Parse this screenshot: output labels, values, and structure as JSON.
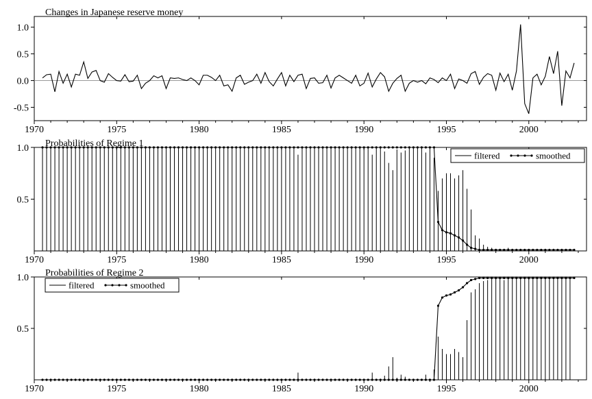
{
  "chart_data": [
    {
      "type": "line",
      "title": "Changes in Japanese reserve money",
      "x_start": 1970.5,
      "x_step": 0.25,
      "xlim": [
        1970,
        2003.5
      ],
      "ylim": [
        -0.75,
        1.2
      ],
      "xticks": [
        1970,
        1975,
        1980,
        1985,
        1990,
        1995,
        2000
      ],
      "yticks": [
        -0.5,
        0.0,
        0.5,
        1.0
      ],
      "ytick_labels": [
        "-0.5",
        "0.0",
        "0.5",
        "1.0"
      ],
      "reference_line": 0,
      "series": [
        {
          "values": [
            0.05,
            0.11,
            0.12,
            -0.21,
            0.17,
            -0.05,
            0.12,
            -0.12,
            0.12,
            0.1,
            0.35,
            0.04,
            0.16,
            0.19,
            0.0,
            -0.03,
            0.13,
            0.06,
            0.0,
            -0.01,
            0.11,
            -0.02,
            -0.01,
            0.1,
            -0.15,
            -0.05,
            0.0,
            0.09,
            0.05,
            0.09,
            -0.15,
            0.05,
            0.04,
            0.05,
            0.02,
            0.0,
            0.05,
            0.0,
            -0.08,
            0.1,
            0.1,
            0.06,
            0.0,
            0.1,
            -0.1,
            -0.08,
            -0.2,
            0.05,
            0.1,
            -0.07,
            -0.03,
            0.0,
            0.12,
            -0.05,
            0.15,
            -0.02,
            -0.1,
            0.03,
            0.15,
            -0.1,
            0.1,
            -0.02,
            0.1,
            0.12,
            -0.15,
            0.04,
            0.05,
            -0.05,
            -0.04,
            0.1,
            -0.14,
            0.05,
            0.1,
            0.05,
            0.0,
            -0.05,
            0.1,
            -0.1,
            -0.05,
            0.14,
            -0.12,
            0.03,
            0.15,
            0.07,
            -0.2,
            -0.05,
            0.04,
            0.1,
            -0.2,
            -0.05,
            0.0,
            -0.03,
            0.0,
            -0.06,
            0.05,
            0.02,
            -0.04,
            0.05,
            0.0,
            0.12,
            -0.15,
            0.03,
            0.0,
            -0.05,
            0.13,
            0.17,
            -0.07,
            0.06,
            0.13,
            0.1,
            -0.18,
            0.14,
            -0.02,
            0.12,
            -0.18,
            0.18,
            1.05,
            -0.43,
            -0.62,
            0.05,
            0.12,
            -0.08,
            0.08,
            0.45,
            0.13,
            0.55,
            -0.47,
            0.18,
            0.05,
            0.33
          ]
        }
      ]
    },
    {
      "type": "line",
      "title": "Probabilities of Regime 1",
      "x_start": 1970.5,
      "x_step": 0.25,
      "xlim": [
        1970,
        2003.5
      ],
      "ylim": [
        0,
        1
      ],
      "xticks": [
        1970,
        1975,
        1980,
        1985,
        1990,
        1995,
        2000
      ],
      "yticks": [
        0.5,
        1.0
      ],
      "ytick_labels": [
        "0.5",
        "1.0"
      ],
      "legend": {
        "position": "top-right",
        "entries": [
          "filtered",
          "smoothed"
        ]
      },
      "series": [
        {
          "name": "filtered",
          "style": "needle",
          "values": [
            1,
            1,
            1,
            1,
            1,
            1,
            1,
            1,
            1,
            1,
            1,
            1,
            1,
            1,
            1,
            1,
            1,
            1,
            1,
            1,
            1,
            1,
            1,
            1,
            1,
            1,
            1,
            1,
            1,
            1,
            1,
            1,
            1,
            1,
            1,
            1,
            1,
            1,
            1,
            1,
            1,
            1,
            1,
            1,
            1,
            1,
            1,
            1,
            1,
            1,
            1,
            1,
            1,
            1,
            1,
            1,
            1,
            1,
            1,
            1,
            1,
            1,
            0.93,
            1,
            1,
            1,
            1,
            1,
            1,
            1,
            1,
            1,
            1,
            1,
            1,
            1,
            1,
            1,
            1,
            1,
            0.93,
            1,
            1,
            0.96,
            0.85,
            0.78,
            0.98,
            0.95,
            0.97,
            1,
            1,
            1,
            1,
            0.95,
            0.99,
            0.9,
            0.58,
            0.7,
            0.75,
            0.75,
            0.7,
            0.73,
            0.78,
            0.6,
            0.4,
            0.15,
            0.12,
            0.06,
            0.04,
            0.03,
            0.02,
            0.02,
            0.02,
            0.03,
            0.02,
            0.02,
            0.01,
            0.01,
            0.01,
            0.01,
            0.01,
            0.01,
            0.01,
            0.01,
            0.01,
            0.01,
            0.01,
            0.01,
            0.01,
            0.01
          ]
        },
        {
          "name": "smoothed",
          "style": "line-dots",
          "values": [
            1,
            1,
            1,
            1,
            1,
            1,
            1,
            1,
            1,
            1,
            1,
            1,
            1,
            1,
            1,
            1,
            1,
            1,
            1,
            1,
            1,
            1,
            1,
            1,
            1,
            1,
            1,
            1,
            1,
            1,
            1,
            1,
            1,
            1,
            1,
            1,
            1,
            1,
            1,
            1,
            1,
            1,
            1,
            1,
            1,
            1,
            1,
            1,
            1,
            1,
            1,
            1,
            1,
            1,
            1,
            1,
            1,
            1,
            1,
            1,
            1,
            1,
            1,
            1,
            1,
            1,
            1,
            1,
            1,
            1,
            1,
            1,
            1,
            1,
            1,
            1,
            1,
            1,
            1,
            1,
            1,
            1,
            1,
            1,
            1,
            1,
            1,
            1,
            1,
            1,
            1,
            1,
            1,
            1,
            1,
            1,
            0.28,
            0.2,
            0.18,
            0.17,
            0.15,
            0.13,
            0.1,
            0.06,
            0.03,
            0.02,
            0.01,
            0.01,
            0.01,
            0.01,
            0.01,
            0.01,
            0.01,
            0.01,
            0.01,
            0.01,
            0.01,
            0.01,
            0.01,
            0.01,
            0.01,
            0.01,
            0.01,
            0.01,
            0.01,
            0.01,
            0.01,
            0.01,
            0.01,
            0.01
          ]
        }
      ]
    },
    {
      "type": "line",
      "title": "Probabilities of Regime 2",
      "x_start": 1970.5,
      "x_step": 0.25,
      "xlim": [
        1970,
        2003.5
      ],
      "ylim": [
        0,
        1
      ],
      "xticks": [
        1970,
        1975,
        1980,
        1985,
        1990,
        1995,
        2000
      ],
      "yticks": [
        0.5,
        1.0
      ],
      "ytick_labels": [
        "0.5",
        "1.0"
      ],
      "legend": {
        "position": "top-left",
        "entries": [
          "filtered",
          "smoothed"
        ]
      },
      "series": [
        {
          "name": "filtered",
          "style": "needle",
          "values": [
            0,
            0,
            0,
            0,
            0,
            0,
            0,
            0,
            0,
            0,
            0,
            0,
            0,
            0,
            0,
            0,
            0,
            0,
            0,
            0,
            0,
            0,
            0,
            0,
            0,
            0,
            0,
            0,
            0,
            0,
            0,
            0,
            0,
            0,
            0,
            0,
            0,
            0,
            0,
            0,
            0,
            0,
            0,
            0,
            0,
            0,
            0,
            0,
            0,
            0,
            0,
            0,
            0,
            0,
            0,
            0,
            0,
            0,
            0,
            0,
            0,
            0,
            0.07,
            0,
            0,
            0,
            0,
            0,
            0,
            0,
            0,
            0,
            0,
            0,
            0,
            0,
            0,
            0,
            0,
            0,
            0.07,
            0,
            0,
            0.04,
            0.13,
            0.22,
            0.02,
            0.05,
            0.03,
            0,
            0,
            0,
            0,
            0.05,
            0.01,
            0.1,
            0.42,
            0.3,
            0.25,
            0.25,
            0.3,
            0.27,
            0.22,
            0.58,
            0.85,
            0.88,
            0.94,
            0.96,
            0.97,
            0.98,
            0.98,
            0.98,
            0.97,
            0.98,
            0.98,
            0.99,
            0.99,
            0.99,
            0.99,
            0.99,
            0.99,
            0.99,
            0.99,
            0.99,
            0.99,
            0.99,
            0.99,
            0.99,
            0.99
          ]
        },
        {
          "name": "smoothed",
          "style": "line-dots",
          "values": [
            0,
            0,
            0,
            0,
            0,
            0,
            0,
            0,
            0,
            0,
            0,
            0,
            0,
            0,
            0,
            0,
            0,
            0,
            0,
            0,
            0,
            0,
            0,
            0,
            0,
            0,
            0,
            0,
            0,
            0,
            0,
            0,
            0,
            0,
            0,
            0,
            0,
            0,
            0,
            0,
            0,
            0,
            0,
            0,
            0,
            0,
            0,
            0,
            0,
            0,
            0,
            0,
            0,
            0,
            0,
            0,
            0,
            0,
            0,
            0,
            0,
            0,
            0,
            0,
            0,
            0,
            0,
            0,
            0,
            0,
            0,
            0,
            0,
            0,
            0,
            0,
            0,
            0,
            0,
            0,
            0,
            0,
            0,
            0,
            0,
            0,
            0,
            0,
            0,
            0,
            0,
            0,
            0,
            0,
            0,
            0,
            0.72,
            0.8,
            0.82,
            0.83,
            0.85,
            0.87,
            0.9,
            0.94,
            0.97,
            0.98,
            0.99,
            0.99,
            0.99,
            0.99,
            0.99,
            0.99,
            0.99,
            0.99,
            0.99,
            0.99,
            0.99,
            0.99,
            0.99,
            0.99,
            0.99,
            0.99,
            0.99,
            0.99,
            0.99,
            0.99,
            0.99,
            0.99,
            0.99,
            0.99
          ]
        }
      ]
    }
  ]
}
